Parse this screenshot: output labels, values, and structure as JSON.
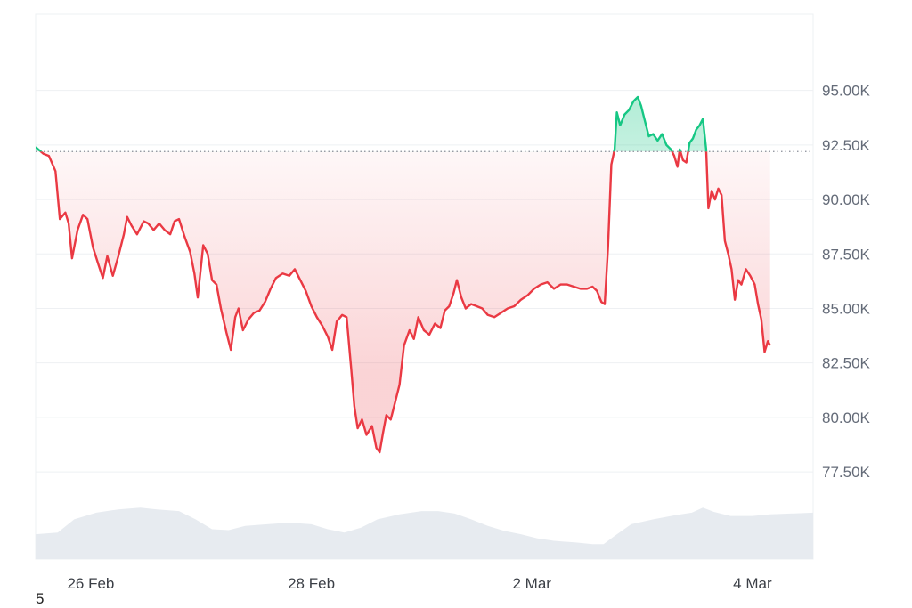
{
  "chart_data": {
    "type": "line",
    "y_ticks": [
      "95.00K",
      "92.50K",
      "90.00K",
      "87.50K",
      "85.00K",
      "82.50K",
      "80.00K",
      "77.50K"
    ],
    "y_tick_values": [
      95000,
      92500,
      90000,
      87500,
      85000,
      82500,
      80000,
      77500
    ],
    "x_ticks": [
      "26 Feb",
      "28 Feb",
      "2 Mar",
      "4 Mar"
    ],
    "x_tick_times": [
      0.5,
      2.5,
      4.5,
      6.5
    ],
    "x_range": [
      0,
      7.05
    ],
    "ylim": [
      73500,
      98500
    ],
    "reference_price": 92200,
    "grid": true,
    "colors": {
      "above": "#16c784",
      "below": "#ea3943",
      "fill_above": "#16c784",
      "fill_below": "#ea3943",
      "volume": "#e7ebf0",
      "grid": "#eef0f3",
      "reference_line": "#8a8f99"
    },
    "price_series": [
      [
        0.0,
        92400
      ],
      [
        0.07,
        92100
      ],
      [
        0.12,
        92000
      ],
      [
        0.18,
        91300
      ],
      [
        0.22,
        89100
      ],
      [
        0.27,
        89400
      ],
      [
        0.3,
        88900
      ],
      [
        0.33,
        87300
      ],
      [
        0.38,
        88600
      ],
      [
        0.43,
        89300
      ],
      [
        0.47,
        89100
      ],
      [
        0.52,
        87800
      ],
      [
        0.57,
        87000
      ],
      [
        0.61,
        86400
      ],
      [
        0.65,
        87400
      ],
      [
        0.7,
        86500
      ],
      [
        0.75,
        87400
      ],
      [
        0.8,
        88400
      ],
      [
        0.83,
        89200
      ],
      [
        0.87,
        88800
      ],
      [
        0.92,
        88400
      ],
      [
        0.98,
        89000
      ],
      [
        1.02,
        88900
      ],
      [
        1.07,
        88600
      ],
      [
        1.12,
        88900
      ],
      [
        1.17,
        88600
      ],
      [
        1.22,
        88400
      ],
      [
        1.26,
        89000
      ],
      [
        1.3,
        89100
      ],
      [
        1.35,
        88300
      ],
      [
        1.4,
        87600
      ],
      [
        1.44,
        86600
      ],
      [
        1.47,
        85500
      ],
      [
        1.52,
        87900
      ],
      [
        1.56,
        87500
      ],
      [
        1.6,
        86300
      ],
      [
        1.64,
        86100
      ],
      [
        1.68,
        85000
      ],
      [
        1.73,
        83900
      ],
      [
        1.77,
        83100
      ],
      [
        1.81,
        84600
      ],
      [
        1.84,
        85000
      ],
      [
        1.88,
        84000
      ],
      [
        1.93,
        84500
      ],
      [
        1.98,
        84800
      ],
      [
        2.03,
        84900
      ],
      [
        2.08,
        85300
      ],
      [
        2.13,
        85900
      ],
      [
        2.18,
        86400
      ],
      [
        2.24,
        86600
      ],
      [
        2.3,
        86500
      ],
      [
        2.35,
        86800
      ],
      [
        2.4,
        86300
      ],
      [
        2.45,
        85800
      ],
      [
        2.5,
        85100
      ],
      [
        2.55,
        84600
      ],
      [
        2.6,
        84200
      ],
      [
        2.65,
        83700
      ],
      [
        2.69,
        83100
      ],
      [
        2.73,
        84400
      ],
      [
        2.78,
        84700
      ],
      [
        2.82,
        84600
      ],
      [
        2.86,
        82300
      ],
      [
        2.89,
        80500
      ],
      [
        2.92,
        79500
      ],
      [
        2.96,
        79900
      ],
      [
        3.0,
        79200
      ],
      [
        3.05,
        79600
      ],
      [
        3.09,
        78600
      ],
      [
        3.12,
        78400
      ],
      [
        3.15,
        79300
      ],
      [
        3.18,
        80100
      ],
      [
        3.22,
        79900
      ],
      [
        3.26,
        80700
      ],
      [
        3.3,
        81500
      ],
      [
        3.34,
        83300
      ],
      [
        3.39,
        84000
      ],
      [
        3.43,
        83600
      ],
      [
        3.47,
        84600
      ],
      [
        3.52,
        84000
      ],
      [
        3.57,
        83800
      ],
      [
        3.62,
        84300
      ],
      [
        3.67,
        84100
      ],
      [
        3.71,
        84900
      ],
      [
        3.75,
        85100
      ],
      [
        3.79,
        85700
      ],
      [
        3.82,
        86300
      ],
      [
        3.86,
        85500
      ],
      [
        3.9,
        85000
      ],
      [
        3.95,
        85200
      ],
      [
        4.0,
        85100
      ],
      [
        4.05,
        85000
      ],
      [
        4.1,
        84700
      ],
      [
        4.16,
        84600
      ],
      [
        4.22,
        84800
      ],
      [
        4.28,
        85000
      ],
      [
        4.34,
        85100
      ],
      [
        4.4,
        85400
      ],
      [
        4.46,
        85600
      ],
      [
        4.52,
        85900
      ],
      [
        4.58,
        86100
      ],
      [
        4.64,
        86200
      ],
      [
        4.7,
        85900
      ],
      [
        4.76,
        86100
      ],
      [
        4.82,
        86100
      ],
      [
        4.88,
        86000
      ],
      [
        4.94,
        85900
      ],
      [
        5.0,
        85900
      ],
      [
        5.05,
        86000
      ],
      [
        5.09,
        85800
      ],
      [
        5.13,
        85300
      ],
      [
        5.16,
        85200
      ],
      [
        5.19,
        87800
      ],
      [
        5.22,
        91600
      ],
      [
        5.25,
        92300
      ],
      [
        5.27,
        94000
      ],
      [
        5.3,
        93400
      ],
      [
        5.34,
        93900
      ],
      [
        5.38,
        94100
      ],
      [
        5.42,
        94500
      ],
      [
        5.46,
        94700
      ],
      [
        5.49,
        94300
      ],
      [
        5.52,
        93700
      ],
      [
        5.56,
        92900
      ],
      [
        5.6,
        93000
      ],
      [
        5.64,
        92700
      ],
      [
        5.68,
        93000
      ],
      [
        5.72,
        92500
      ],
      [
        5.76,
        92300
      ],
      [
        5.79,
        92000
      ],
      [
        5.82,
        91500
      ],
      [
        5.84,
        92300
      ],
      [
        5.87,
        91800
      ],
      [
        5.9,
        91700
      ],
      [
        5.93,
        92600
      ],
      [
        5.96,
        92800
      ],
      [
        5.99,
        93200
      ],
      [
        6.02,
        93400
      ],
      [
        6.05,
        93700
      ],
      [
        6.08,
        92300
      ],
      [
        6.1,
        89600
      ],
      [
        6.13,
        90400
      ],
      [
        6.16,
        90000
      ],
      [
        6.19,
        90500
      ],
      [
        6.22,
        90200
      ],
      [
        6.25,
        88100
      ],
      [
        6.28,
        87500
      ],
      [
        6.31,
        86800
      ],
      [
        6.34,
        85400
      ],
      [
        6.37,
        86300
      ],
      [
        6.4,
        86100
      ],
      [
        6.44,
        86800
      ],
      [
        6.48,
        86500
      ],
      [
        6.52,
        86100
      ],
      [
        6.55,
        85200
      ],
      [
        6.58,
        84500
      ],
      [
        6.61,
        83000
      ],
      [
        6.64,
        83500
      ],
      [
        6.66,
        83300
      ]
    ],
    "volume_series": [
      [
        0.0,
        0.3
      ],
      [
        0.2,
        0.32
      ],
      [
        0.35,
        0.48
      ],
      [
        0.55,
        0.56
      ],
      [
        0.75,
        0.6
      ],
      [
        0.95,
        0.62
      ],
      [
        1.1,
        0.6
      ],
      [
        1.3,
        0.58
      ],
      [
        1.45,
        0.48
      ],
      [
        1.6,
        0.36
      ],
      [
        1.75,
        0.35
      ],
      [
        1.9,
        0.4
      ],
      [
        2.1,
        0.42
      ],
      [
        2.3,
        0.44
      ],
      [
        2.5,
        0.42
      ],
      [
        2.65,
        0.36
      ],
      [
        2.8,
        0.32
      ],
      [
        2.95,
        0.38
      ],
      [
        3.1,
        0.48
      ],
      [
        3.3,
        0.54
      ],
      [
        3.5,
        0.58
      ],
      [
        3.65,
        0.58
      ],
      [
        3.8,
        0.55
      ],
      [
        3.95,
        0.48
      ],
      [
        4.1,
        0.4
      ],
      [
        4.25,
        0.34
      ],
      [
        4.4,
        0.3
      ],
      [
        4.55,
        0.25
      ],
      [
        4.7,
        0.22
      ],
      [
        4.9,
        0.2
      ],
      [
        5.05,
        0.18
      ],
      [
        5.15,
        0.18
      ],
      [
        5.25,
        0.28
      ],
      [
        5.4,
        0.42
      ],
      [
        5.6,
        0.48
      ],
      [
        5.8,
        0.53
      ],
      [
        5.95,
        0.56
      ],
      [
        6.05,
        0.62
      ],
      [
        6.15,
        0.57
      ],
      [
        6.3,
        0.52
      ],
      [
        6.5,
        0.52
      ],
      [
        6.66,
        0.54
      ],
      [
        7.05,
        0.56
      ]
    ]
  },
  "footnote": "5"
}
